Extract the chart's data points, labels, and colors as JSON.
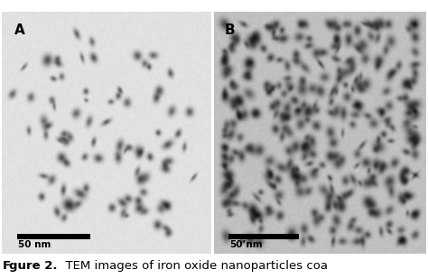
{
  "outer_bg": "#ffffff",
  "top_bar_color": "#4a4a4a",
  "panel_A_bg": 0.88,
  "panel_B_bg": 0.75,
  "label_A": "A",
  "label_B": "B",
  "scalebar_A": "50 nm",
  "scalebar_B": "50’nm",
  "label_fontsize": 11,
  "scalebar_fontsize": 7.5,
  "caption_fontsize": 9.5,
  "caption_text": "gure 2.",
  "caption_rest": "  TEM images of iron oxide nanoparticles coa"
}
